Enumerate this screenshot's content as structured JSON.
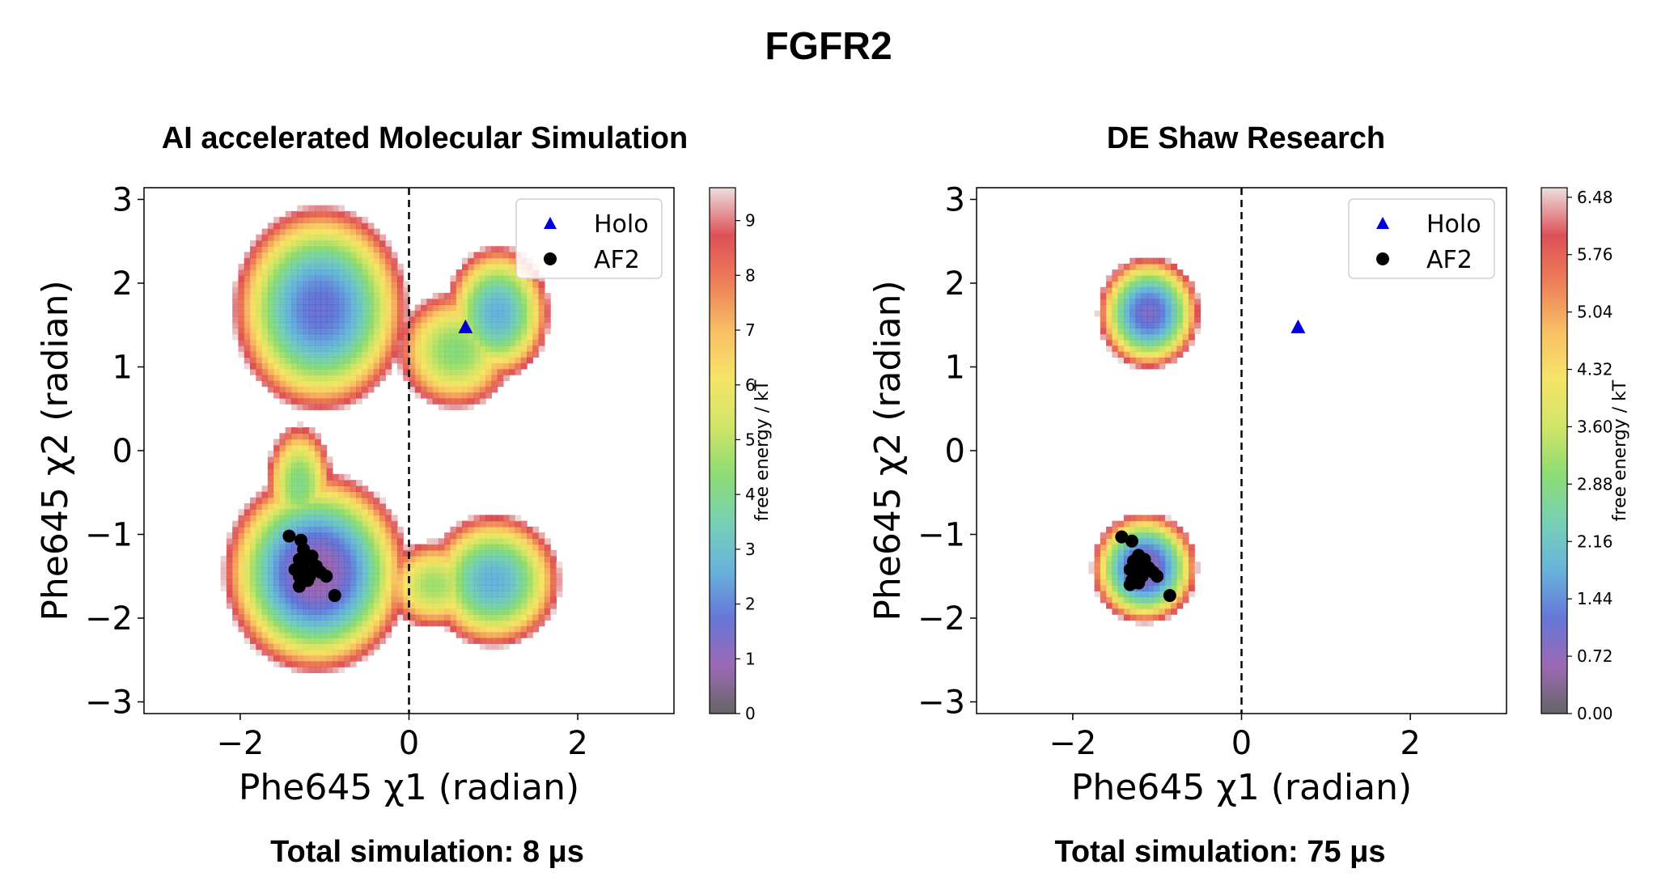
{
  "figure": {
    "title": "FGFR2",
    "colors": {
      "holo_marker": "#0000dd",
      "af2_marker": "#000000",
      "divider": "#000000",
      "colormap": [
        "#4a4a4a",
        "#8a4fa8",
        "#4b5fd0",
        "#4ea6d6",
        "#5fc8a8",
        "#7ad65c",
        "#c8e04e",
        "#f4e04e",
        "#f7b44a",
        "#ea6a3c",
        "#d8323a",
        "#e8d8d8"
      ]
    }
  },
  "chart_data": [
    {
      "type": "heatmap",
      "title": "AI accelerated Molecular Simulation",
      "xlabel": "Phe645 χ1 (radian)",
      "ylabel": "Phe645 χ2 (radian)",
      "xlim": [
        -3.14,
        3.14
      ],
      "ylim": [
        -3.14,
        3.14
      ],
      "xticks": [
        -2,
        0,
        2
      ],
      "xtick_labels": [
        "−2",
        "0",
        "2"
      ],
      "yticks": [
        3,
        2,
        1,
        0,
        -1,
        -2,
        -3
      ],
      "ytick_labels": [
        "3",
        "2",
        "1",
        "0",
        "−1",
        "−2",
        "−3"
      ],
      "divider_x": 0,
      "colorbar": {
        "label": "free energy / kT",
        "ticks": [
          0,
          1,
          2,
          3,
          4,
          5,
          6,
          7,
          8,
          9
        ],
        "tick_labels": [
          "0",
          "1",
          "2",
          "3",
          "4",
          "5",
          "6",
          "7",
          "8",
          "9"
        ],
        "range": [
          0,
          9.6
        ]
      },
      "basins": [
        {
          "cx": -1.05,
          "cy": 1.7,
          "sx": 0.55,
          "sy": 0.65,
          "depth": 1.6
        },
        {
          "cx": 1.05,
          "cy": 1.65,
          "sx": 0.35,
          "sy": 0.45,
          "depth": 2.6
        },
        {
          "cx": 0.55,
          "cy": 1.2,
          "sx": 0.45,
          "sy": 0.45,
          "depth": 4.2
        },
        {
          "cx": -1.1,
          "cy": -1.45,
          "sx": 0.55,
          "sy": 0.6,
          "depth": 0.6
        },
        {
          "cx": -1.3,
          "cy": -0.4,
          "sx": 0.25,
          "sy": 0.45,
          "depth": 4.0
        },
        {
          "cx": 1.0,
          "cy": -1.55,
          "sx": 0.45,
          "sy": 0.45,
          "depth": 2.6
        },
        {
          "cx": 0.3,
          "cy": -1.6,
          "sx": 0.4,
          "sy": 0.35,
          "depth": 4.6
        }
      ],
      "holo": {
        "name": "Holo",
        "x": 0.67,
        "y": 1.47
      },
      "af2": {
        "name": "AF2",
        "points": [
          [
            -1.42,
            -1.02
          ],
          [
            -1.28,
            -1.07
          ],
          [
            -1.25,
            -1.18
          ],
          [
            -1.2,
            -1.28
          ],
          [
            -1.15,
            -1.26
          ],
          [
            -1.3,
            -1.3
          ],
          [
            -1.25,
            -1.35
          ],
          [
            -1.35,
            -1.42
          ],
          [
            -1.22,
            -1.45
          ],
          [
            -1.1,
            -1.38
          ],
          [
            -1.3,
            -1.5
          ],
          [
            -1.18,
            -1.5
          ],
          [
            -1.05,
            -1.45
          ],
          [
            -1.28,
            -1.58
          ],
          [
            -1.2,
            -1.55
          ],
          [
            -0.98,
            -1.5
          ],
          [
            -1.3,
            -1.62
          ],
          [
            -0.88,
            -1.73
          ]
        ]
      },
      "legend_position": "upper right"
    },
    {
      "type": "heatmap",
      "title": "DE Shaw Research",
      "xlabel": "Phe645 χ1 (radian)",
      "ylabel": "Phe645 χ2 (radian)",
      "xlim": [
        -3.14,
        3.14
      ],
      "ylim": [
        -3.14,
        3.14
      ],
      "xticks": [
        -2,
        0,
        2
      ],
      "xtick_labels": [
        "−2",
        "0",
        "2"
      ],
      "yticks": [
        3,
        2,
        1,
        0,
        -1,
        -2,
        -3
      ],
      "ytick_labels": [
        "3",
        "2",
        "1",
        "0",
        "−1",
        "−2",
        "−3"
      ],
      "divider_x": 0,
      "colorbar": {
        "label": "free energy / kT",
        "ticks": [
          0.0,
          0.72,
          1.44,
          2.16,
          2.88,
          3.6,
          4.32,
          5.04,
          5.76,
          6.48
        ],
        "tick_labels": [
          "0.00",
          "0.72",
          "1.44",
          "2.16",
          "2.88",
          "3.60",
          "4.32",
          "5.04",
          "5.76",
          "6.48"
        ],
        "range": [
          0,
          6.6
        ]
      },
      "basins": [
        {
          "cx": -1.1,
          "cy": 1.65,
          "sx": 0.38,
          "sy": 0.42,
          "depth": 0.9
        },
        {
          "cx": -1.15,
          "cy": -1.4,
          "sx": 0.38,
          "sy": 0.4,
          "depth": 0.5
        }
      ],
      "holo": {
        "name": "Holo",
        "x": 0.67,
        "y": 1.47
      },
      "af2": {
        "name": "AF2",
        "points": [
          [
            -1.42,
            -1.03
          ],
          [
            -1.3,
            -1.08
          ],
          [
            -1.22,
            -1.25
          ],
          [
            -1.15,
            -1.3
          ],
          [
            -1.28,
            -1.32
          ],
          [
            -1.2,
            -1.38
          ],
          [
            -1.32,
            -1.42
          ],
          [
            -1.1,
            -1.4
          ],
          [
            -1.25,
            -1.47
          ],
          [
            -1.18,
            -1.5
          ],
          [
            -1.05,
            -1.45
          ],
          [
            -1.3,
            -1.55
          ],
          [
            -1.22,
            -1.58
          ],
          [
            -1.0,
            -1.5
          ],
          [
            -1.32,
            -1.6
          ],
          [
            -0.85,
            -1.73
          ]
        ]
      },
      "legend_position": "upper right"
    }
  ],
  "footers": {
    "left": "Total simulation: 8 μs",
    "right": "Total simulation: 75 μs"
  }
}
